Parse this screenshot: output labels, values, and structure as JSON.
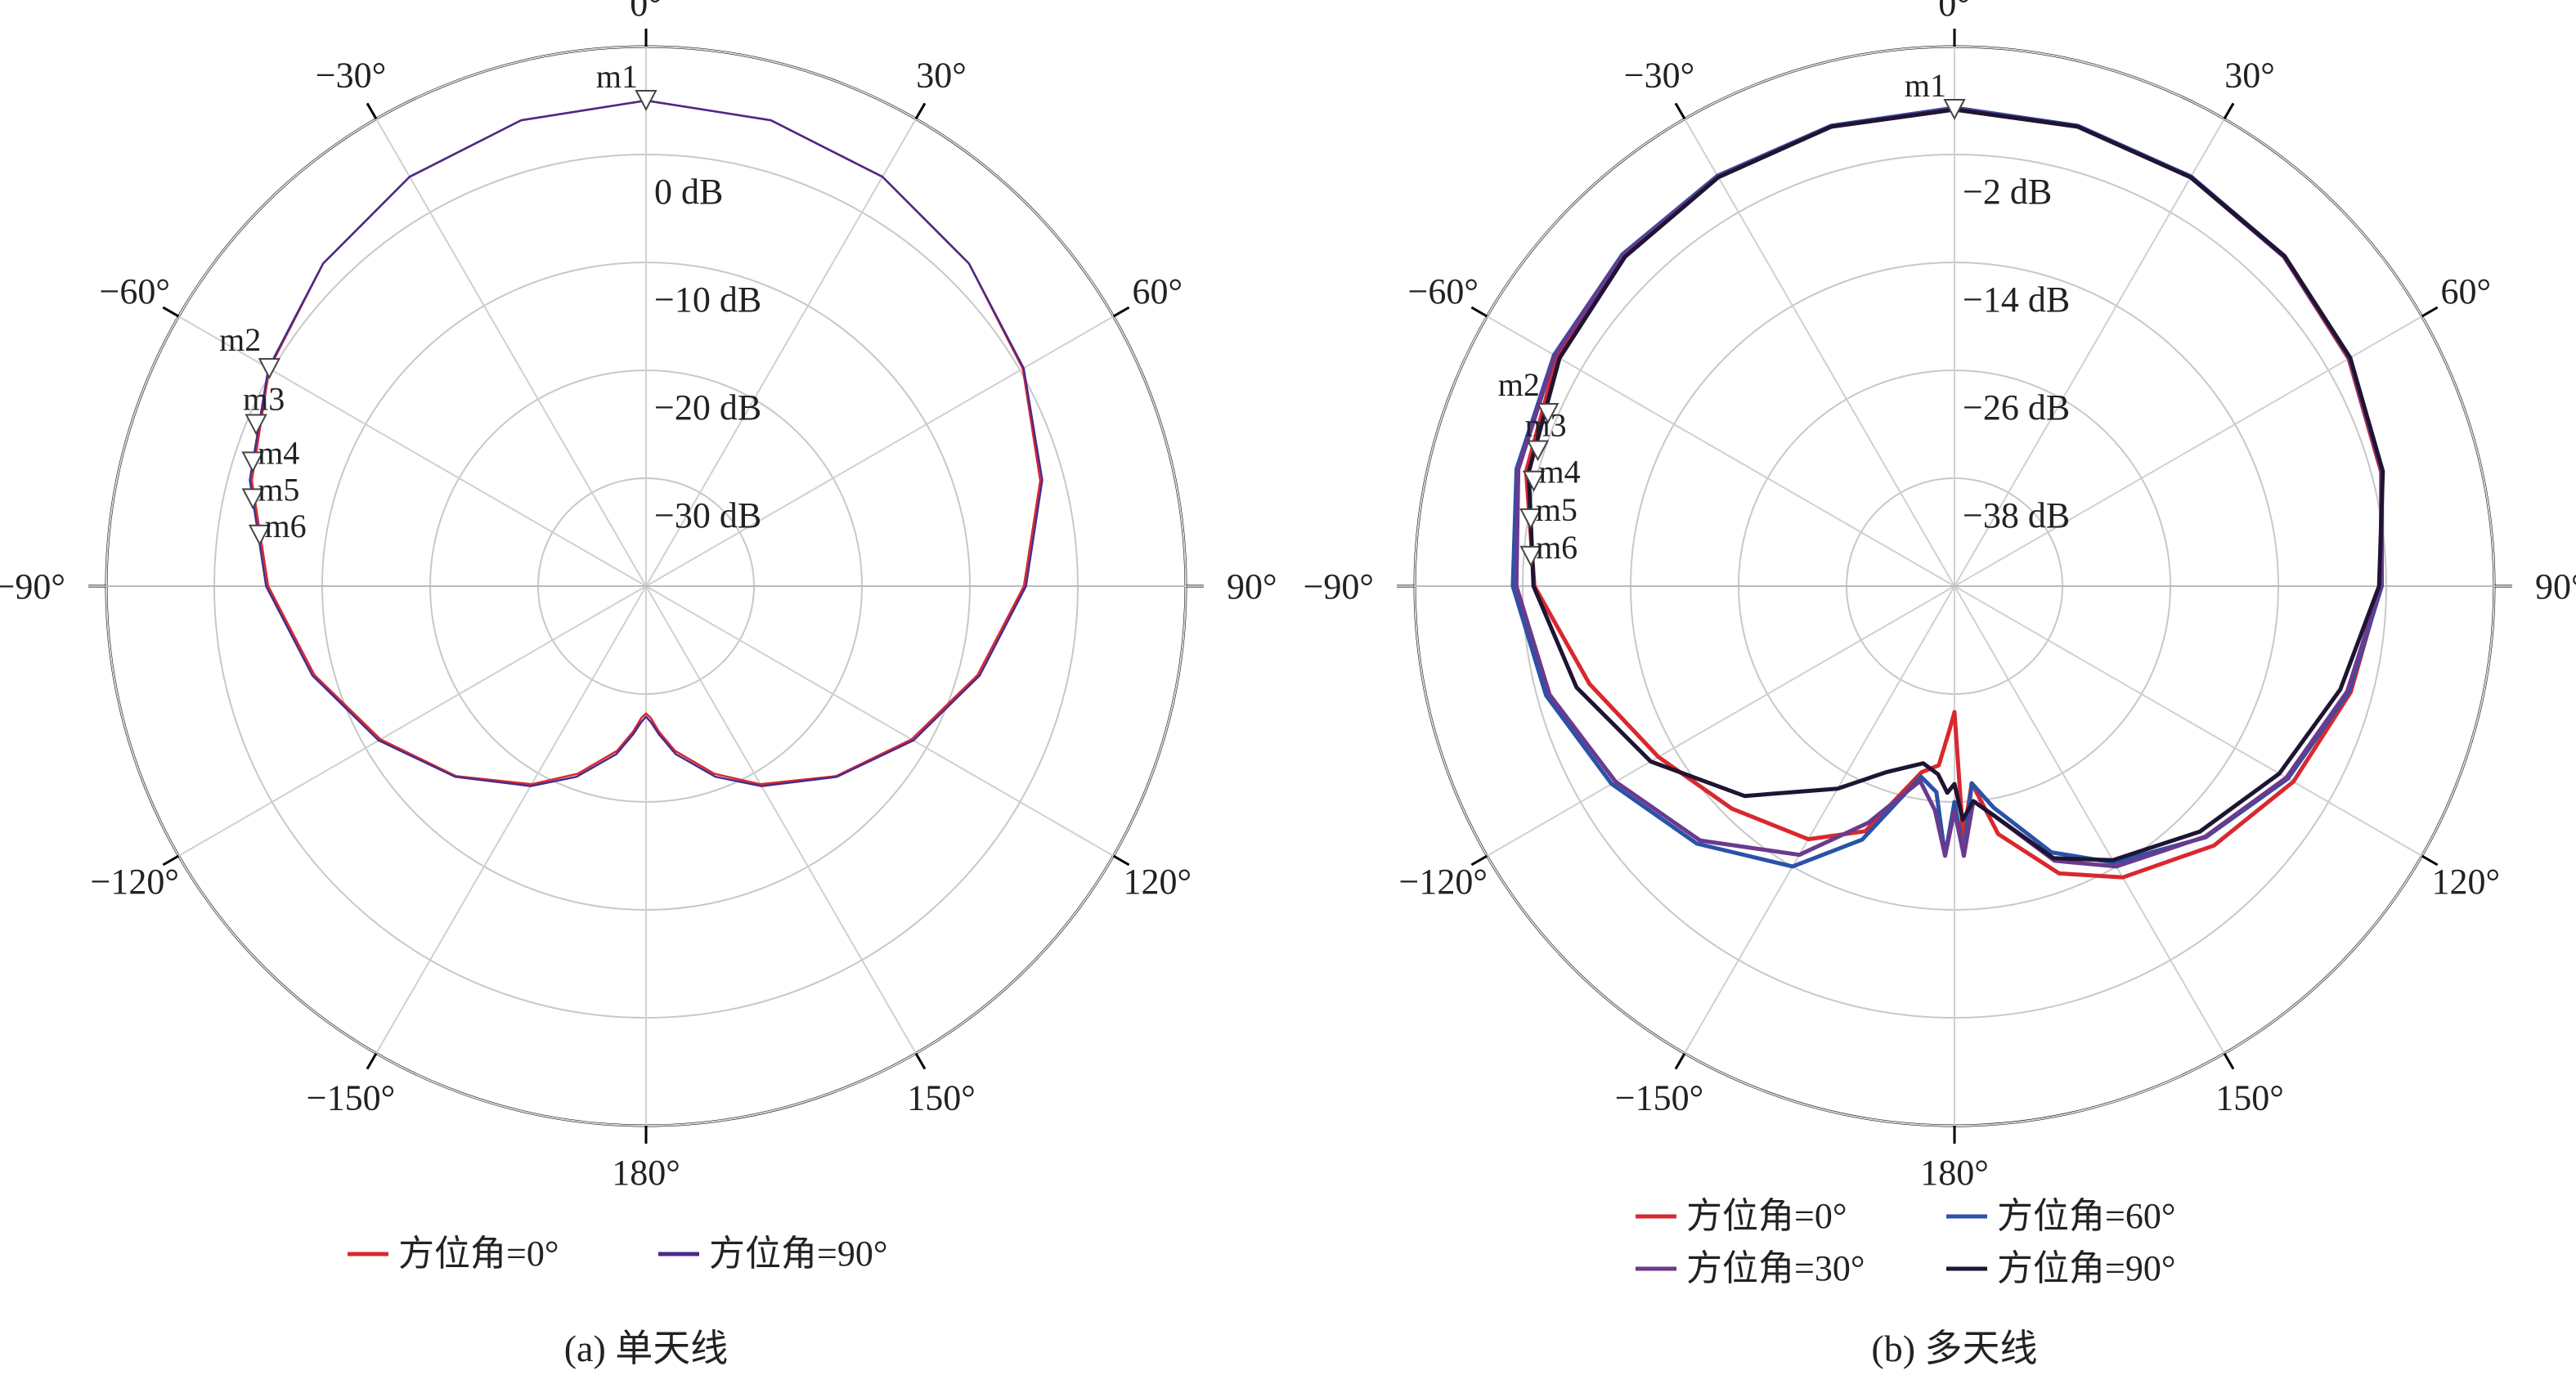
{
  "chart_data": [
    {
      "type": "polar-line",
      "caption": "(a) 单天线",
      "angle_unit": "deg",
      "angle_zero": "top",
      "angle_ticks": [
        0,
        30,
        60,
        90,
        120,
        150,
        180,
        -150,
        -120,
        -90,
        -60,
        -30
      ],
      "angle_tick_labels": [
        "0°",
        "30°",
        "60°",
        "90°",
        "120°",
        "150°",
        "180°",
        "−150°",
        "−120°",
        "−90°",
        "−60°",
        "−30°"
      ],
      "radial_ticks": [
        0,
        -10,
        -20,
        -30
      ],
      "radial_tick_labels": [
        "0 dB",
        "−10 dB",
        "−20 dB",
        "−30 dB"
      ],
      "r_range": [
        -40,
        10
      ],
      "grid": true,
      "legend_position": "bottom-center",
      "series": [
        {
          "name": "方位角=0°",
          "color": "#d9282f",
          "theta": [
            0,
            15,
            30,
            45,
            60,
            75,
            90,
            105,
            120,
            135,
            150,
            160,
            170,
            175,
            178,
            180,
            182,
            185,
            190,
            200,
            210,
            225,
            240,
            255,
            270,
            285,
            300,
            315,
            330,
            345,
            360
          ],
          "r": [
            5.0,
            4.7,
            3.8,
            2.3,
            0.3,
            -2.2,
            -5.0,
            -8.2,
            -11.6,
            -15.1,
            -18.8,
            -21.5,
            -24.5,
            -26.5,
            -27.8,
            -28.2,
            -27.8,
            -26.5,
            -24.5,
            -21.5,
            -18.8,
            -15.1,
            -11.6,
            -8.2,
            -5.0,
            -2.2,
            0.3,
            2.3,
            3.8,
            4.7,
            5.0
          ]
        },
        {
          "name": "方位角=90°",
          "color": "#4a2a8a",
          "theta": [
            0,
            15,
            30,
            45,
            60,
            75,
            90,
            105,
            120,
            135,
            150,
            160,
            170,
            175,
            178,
            180,
            182,
            185,
            190,
            200,
            210,
            225,
            240,
            255,
            270,
            285,
            300,
            315,
            330,
            345,
            360
          ],
          "r": [
            5.0,
            4.7,
            3.8,
            2.3,
            0.4,
            -2.0,
            -4.8,
            -8.0,
            -11.4,
            -15.0,
            -18.6,
            -21.2,
            -24.2,
            -26.2,
            -27.4,
            -27.9,
            -27.4,
            -26.2,
            -24.2,
            -21.2,
            -18.6,
            -15.0,
            -11.4,
            -8.0,
            -4.8,
            -2.0,
            0.4,
            2.3,
            3.8,
            4.7,
            5.0
          ]
        }
      ],
      "markers": [
        {
          "name": "m1",
          "theta": 0,
          "r": 5.0
        },
        {
          "name": "m2",
          "theta": -60,
          "r": 0.3
        },
        {
          "name": "m3",
          "theta": -67.5,
          "r": -0.9
        },
        {
          "name": "m4",
          "theta": -72.5,
          "r": -1.8
        },
        {
          "name": "m5",
          "theta": -77.5,
          "r": -2.7
        },
        {
          "name": "m6",
          "theta": -82.5,
          "r": -3.9
        }
      ]
    },
    {
      "type": "polar-line",
      "caption": "(b) 多天线",
      "angle_unit": "deg",
      "angle_zero": "top",
      "angle_ticks": [
        0,
        30,
        60,
        90,
        120,
        150,
        180,
        -150,
        -120,
        -90,
        -60,
        -30
      ],
      "angle_tick_labels": [
        "0°",
        "30°",
        "60°",
        "90°",
        "120°",
        "150°",
        "180°",
        "−150°",
        "−120°",
        "−90°",
        "−60°",
        "−30°"
      ],
      "radial_ticks": [
        -2,
        -14,
        -26,
        -38
      ],
      "radial_tick_labels": [
        "−2 dB",
        "−14 dB",
        "−26 dB",
        "−38 dB"
      ],
      "r_range": [
        -50,
        10
      ],
      "grid": true,
      "legend_position": "bottom-center",
      "series": [
        {
          "name": "方位角=0°",
          "color": "#d9282f",
          "theta": [
            0,
            15,
            30,
            45,
            60,
            75,
            90,
            105,
            120,
            135,
            150,
            160,
            170,
            175,
            178,
            180,
            182,
            185,
            190,
            200,
            210,
            225,
            240,
            255,
            270,
            285,
            300,
            315,
            330,
            345,
            360
          ],
          "r": [
            3.0,
            2.9,
            2.5,
            1.8,
            0.6,
            -0.9,
            -2.6,
            -4.4,
            -6.5,
            -9.2,
            -12.6,
            -16.0,
            -22.0,
            -28.0,
            -22.0,
            -36.0,
            -34.0,
            -30.0,
            -29.0,
            -21.0,
            -17.5,
            -15.0,
            -12.0,
            -8.0,
            -3.3,
            -0.7,
            1.0,
            2.0,
            2.6,
            2.9,
            3.0
          ]
        },
        {
          "name": "方位角=60°",
          "color": "#2a52a8",
          "theta": [
            0,
            15,
            30,
            45,
            60,
            75,
            90,
            105,
            120,
            135,
            150,
            160,
            170,
            175,
            178,
            180,
            182,
            185,
            190,
            200,
            210,
            225,
            240,
            255,
            270,
            285,
            300,
            315,
            330,
            345,
            360
          ],
          "r": [
            3.2,
            3.0,
            2.6,
            1.9,
            0.7,
            -0.8,
            -2.5,
            -4.6,
            -7.2,
            -10.5,
            -14.5,
            -18.5,
            -25.0,
            -28.0,
            -20.0,
            -26.0,
            -20.0,
            -27.0,
            -28.5,
            -20.0,
            -14.0,
            -9.5,
            -6.0,
            -3.0,
            -0.9,
            0.4,
            1.4,
            2.2,
            2.7,
            3.0,
            3.2
          ]
        },
        {
          "name": "方位角=30°",
          "color": "#6a3a8e",
          "theta": [
            0,
            15,
            30,
            45,
            60,
            75,
            90,
            105,
            120,
            135,
            150,
            160,
            170,
            175,
            178,
            180,
            182,
            185,
            190,
            200,
            210,
            225,
            240,
            255,
            270,
            285,
            300,
            315,
            330,
            345,
            360
          ],
          "r": [
            3.1,
            2.9,
            2.5,
            1.8,
            0.7,
            -0.8,
            -2.6,
            -4.8,
            -7.4,
            -10.6,
            -14.0,
            -17.5,
            -24.0,
            -26.0,
            -20.0,
            -25.0,
            -20.0,
            -25.0,
            -28.0,
            -22.0,
            -15.5,
            -10.0,
            -6.5,
            -3.4,
            -1.3,
            0.2,
            1.3,
            2.1,
            2.6,
            2.9,
            3.1
          ]
        },
        {
          "name": "方位角=90°",
          "color": "#1f1432",
          "theta": [
            0,
            15,
            30,
            45,
            60,
            75,
            90,
            105,
            120,
            135,
            150,
            160,
            170,
            175,
            178,
            180,
            182,
            185,
            190,
            200,
            210,
            225,
            240,
            255,
            270,
            285,
            300,
            315,
            330,
            345,
            360
          ],
          "r": [
            3.0,
            2.9,
            2.5,
            1.9,
            0.8,
            -0.7,
            -2.8,
            -5.6,
            -8.3,
            -11.4,
            -14.8,
            -17.8,
            -24.0,
            -26.0,
            -24.0,
            -28.0,
            -27.0,
            -29.0,
            -30.0,
            -28.0,
            -24.0,
            -17.0,
            -11.0,
            -6.5,
            -3.2,
            -1.0,
            0.7,
            1.8,
            2.5,
            2.9,
            3.0
          ]
        }
      ],
      "markers": [
        {
          "name": "m1",
          "theta": 0,
          "r": 3.0
        },
        {
          "name": "m2",
          "theta": -67,
          "r": -0.9
        },
        {
          "name": "m3",
          "theta": -72,
          "r": -1.3
        },
        {
          "name": "m4",
          "theta": -76,
          "r": -1.8
        },
        {
          "name": "m5",
          "theta": -81,
          "r": -2.3
        },
        {
          "name": "m6",
          "theta": -86,
          "r": -2.8
        }
      ]
    }
  ]
}
